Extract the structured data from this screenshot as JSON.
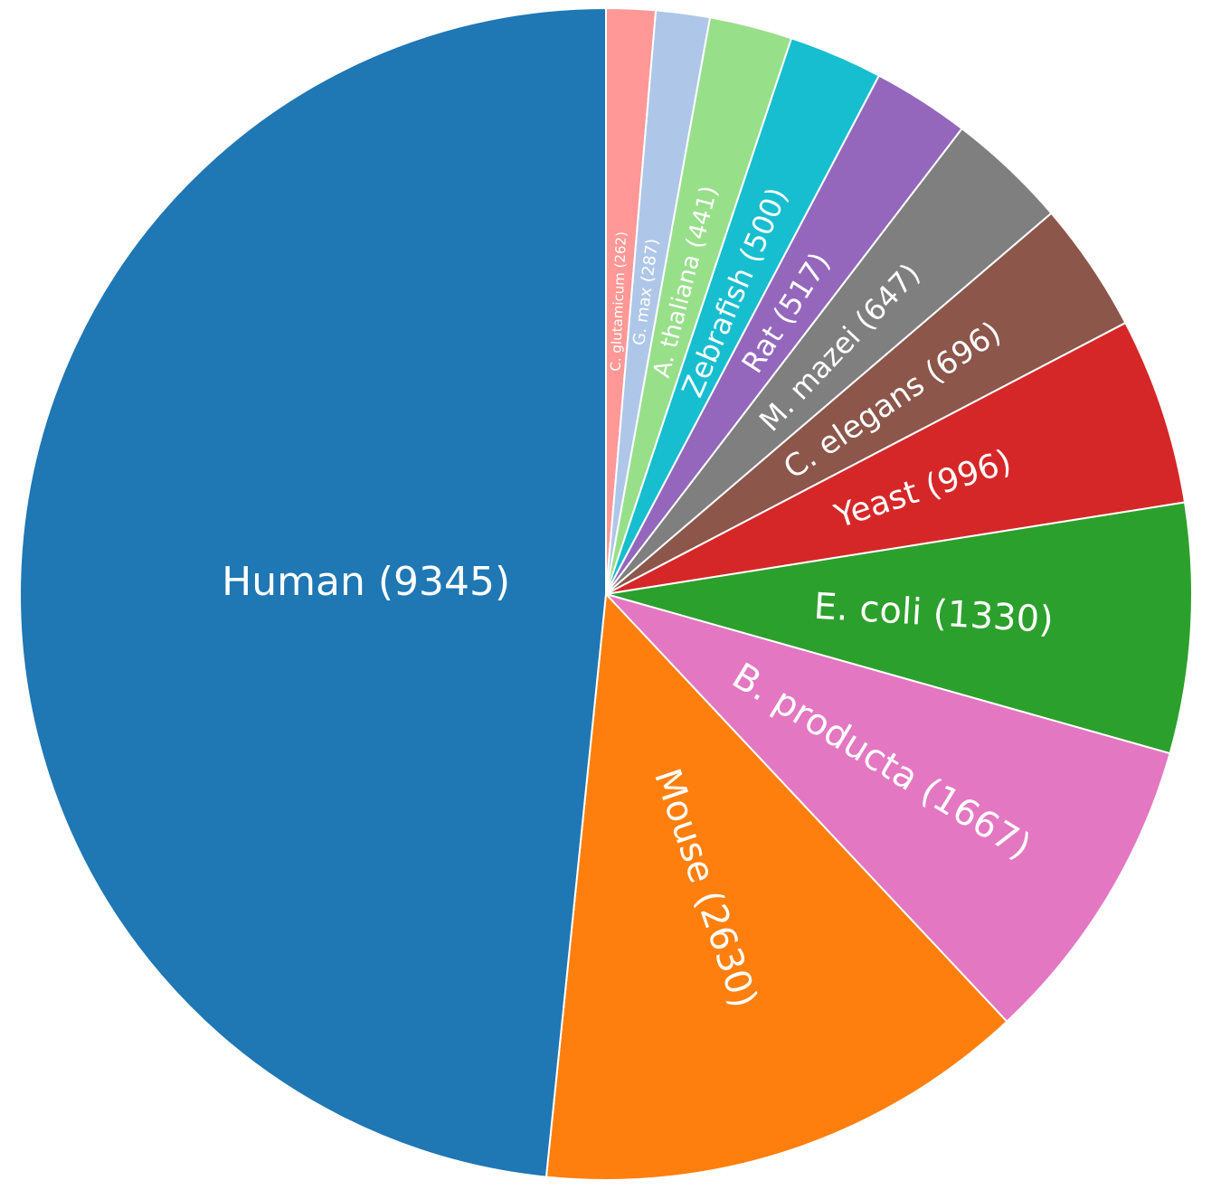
{
  "chart_data": {
    "type": "pie",
    "title": "",
    "start_angle": "top",
    "direction": "clockwise",
    "label_format": "{name} ({value})",
    "slices": [
      {
        "name": "C. glutamicum",
        "value": 262,
        "label": "C. glutamicum (262)",
        "color": "#ff9896"
      },
      {
        "name": "G. max",
        "value": 287,
        "label": "G. max (287)",
        "color": "#aec7e8"
      },
      {
        "name": "A. thaliana",
        "value": 441,
        "label": "A. thaliana (441)",
        "color": "#98df8a"
      },
      {
        "name": "Zebrafish",
        "value": 500,
        "label": "Zebrafish (500)",
        "color": "#17becf"
      },
      {
        "name": "Rat",
        "value": 517,
        "label": "Rat (517)",
        "color": "#9467bd"
      },
      {
        "name": "M. mazei",
        "value": 647,
        "label": "M. mazei (647)",
        "color": "#7f7f7f"
      },
      {
        "name": "C. elegans",
        "value": 696,
        "label": "C. elegans (696)",
        "color": "#8c564b"
      },
      {
        "name": "Yeast",
        "value": 996,
        "label": "Yeast (996)",
        "color": "#d62728"
      },
      {
        "name": "E. coli",
        "value": 1330,
        "label": "E. coli (1330)",
        "color": "#2ca02c"
      },
      {
        "name": "B. producta",
        "value": 1667,
        "label": "B. producta (1667)",
        "color": "#e377c2"
      },
      {
        "name": "Mouse",
        "value": 2630,
        "label": "Mouse (2630)",
        "color": "#ff7f0e"
      },
      {
        "name": "Human",
        "value": 9345,
        "label": "Human (9345)",
        "color": "#1f77b4"
      }
    ]
  }
}
